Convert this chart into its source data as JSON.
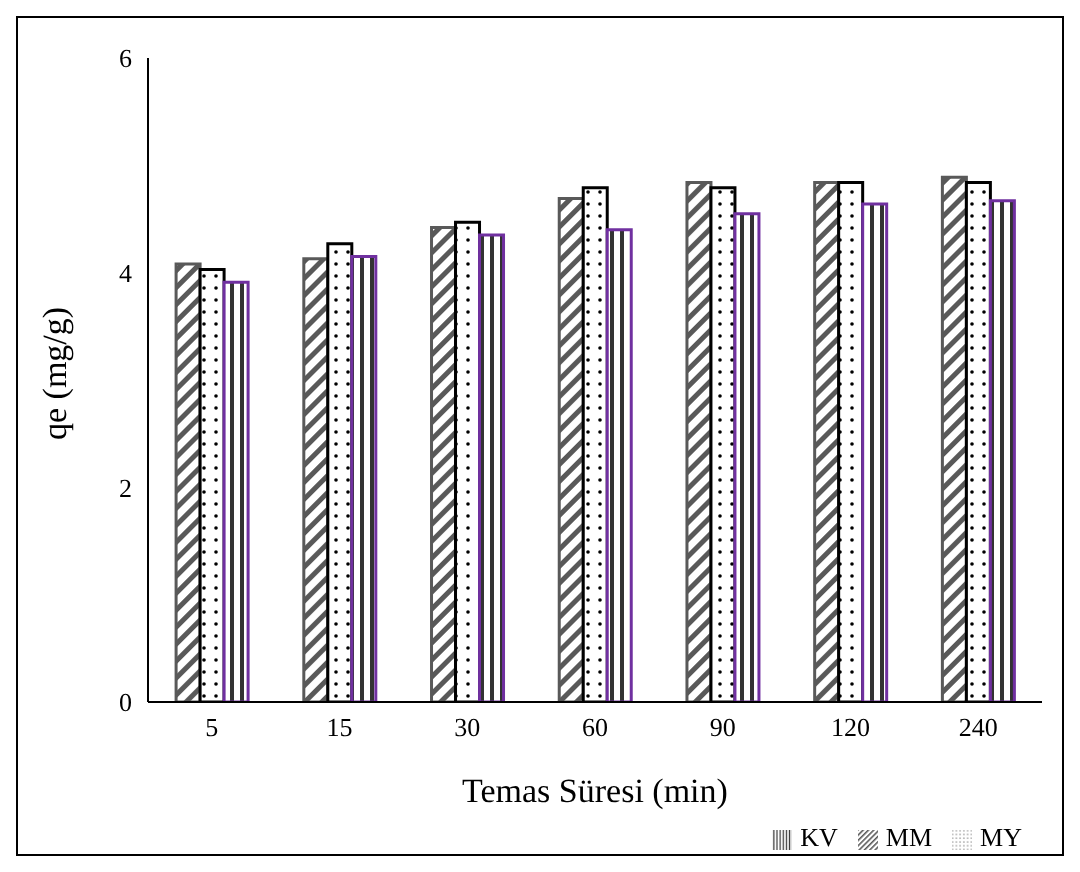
{
  "chart_data": {
    "type": "bar",
    "xlabel": "Temas Süresi (min)",
    "ylabel": "qe (mg/g)",
    "categories": [
      "5",
      "15",
      "30",
      "60",
      "90",
      "120",
      "240"
    ],
    "series": [
      {
        "name": "MM",
        "color": "#595959",
        "values": [
          4.08,
          4.13,
          4.42,
          4.69,
          4.84,
          4.84,
          4.89
        ]
      },
      {
        "name": "MY",
        "color": "#000000",
        "values": [
          4.03,
          4.27,
          4.47,
          4.79,
          4.79,
          4.84,
          4.84
        ]
      },
      {
        "name": "KV",
        "color": "#7030a0",
        "values": [
          3.91,
          4.15,
          4.35,
          4.4,
          4.55,
          4.64,
          4.67
        ]
      }
    ],
    "ylim": [
      0,
      6
    ],
    "yticks": [
      0,
      2,
      4,
      6
    ],
    "grid": false,
    "legend": "bottom right"
  }
}
